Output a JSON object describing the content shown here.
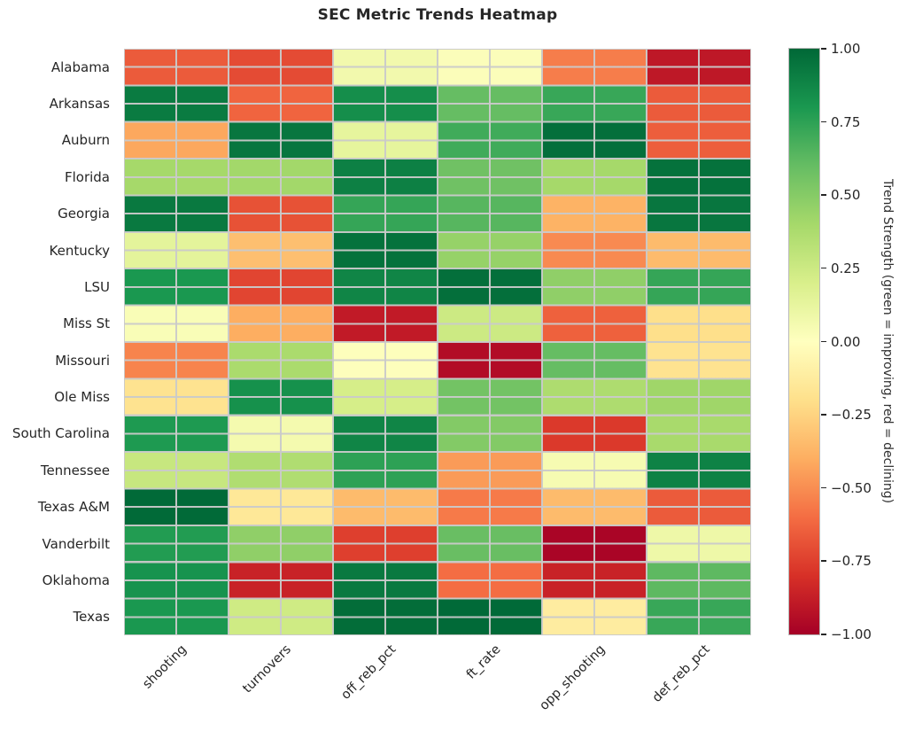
{
  "title": "SEC Metric Trends Heatmap",
  "colors": {
    "background": "#ffffff",
    "text": "#262626",
    "gridline": "#cacaca"
  },
  "chart_data": {
    "type": "heatmap",
    "title": "SEC Metric Trends Heatmap",
    "rows": [
      "Alabama",
      "Arkansas",
      "Auburn",
      "Florida",
      "Georgia",
      "Kentucky",
      "LSU",
      "Miss St",
      "Missouri",
      "Ole Miss",
      "South Carolina",
      "Tennessee",
      "Texas A&M",
      "Vanderbilt",
      "Oklahoma",
      "Texas"
    ],
    "columns": [
      "shooting",
      "turnovers",
      "off_reb_pct",
      "ft_rate",
      "opp_shooting",
      "def_reb_pct"
    ],
    "values": [
      [
        -0.66,
        -0.71,
        0.07,
        0.02,
        -0.55,
        -0.9
      ],
      [
        0.92,
        -0.63,
        0.84,
        0.6,
        0.72,
        -0.66
      ],
      [
        -0.42,
        0.94,
        0.13,
        0.7,
        0.97,
        -0.65
      ],
      [
        0.4,
        0.41,
        0.9,
        0.57,
        0.4,
        0.96
      ],
      [
        0.93,
        -0.69,
        0.73,
        0.64,
        -0.38,
        0.94
      ],
      [
        0.14,
        -0.33,
        0.96,
        0.45,
        -0.51,
        -0.35
      ],
      [
        0.8,
        -0.73,
        0.88,
        0.97,
        0.47,
        0.73
      ],
      [
        0.03,
        -0.4,
        -0.89,
        0.25,
        -0.64,
        -0.2
      ],
      [
        -0.53,
        0.38,
        0.01,
        -0.95,
        0.6,
        -0.18
      ],
      [
        -0.18,
        0.83,
        0.21,
        0.56,
        0.37,
        0.42
      ],
      [
        0.79,
        0.06,
        0.88,
        0.51,
        -0.77,
        0.39
      ],
      [
        0.27,
        0.36,
        0.75,
        -0.46,
        0.05,
        0.89
      ],
      [
        0.99,
        -0.15,
        -0.35,
        -0.56,
        -0.35,
        -0.66
      ],
      [
        0.78,
        0.47,
        -0.75,
        0.59,
        -0.98,
        0.09
      ],
      [
        0.82,
        -0.86,
        0.93,
        -0.6,
        -0.86,
        0.62
      ],
      [
        0.8,
        0.24,
        0.98,
        0.99,
        -0.12,
        0.72
      ]
    ],
    "value_range": [
      -1,
      1
    ],
    "colormap": "RdYlGn",
    "grid": true,
    "colorbar": {
      "label": "Trend Strength (green = improving, red = declining)",
      "ticks": [
        "1.00",
        "0.75",
        "0.50",
        "0.25",
        "0.00",
        "−0.25",
        "−0.50",
        "−0.75",
        "−1.00"
      ],
      "gradient_top_to_bottom": [
        "#006837",
        "#1a9850",
        "#66bd63",
        "#a6d96a",
        "#d9ef8b",
        "#ffffbf",
        "#fee08b",
        "#fdae61",
        "#f46d43",
        "#d73027",
        "#a50026"
      ],
      "position": "right"
    }
  }
}
